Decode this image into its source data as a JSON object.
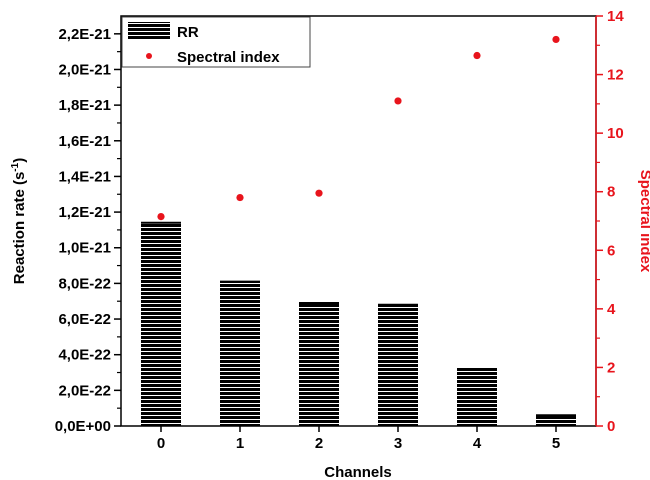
{
  "chart_data": {
    "type": "bar",
    "categories": [
      "0",
      "1",
      "2",
      "3",
      "4",
      "5"
    ],
    "xlabel": "Channels",
    "ylabel": "Reaction rate (s",
    "ylabel_superscript": "-1",
    "ylabel_close": ")",
    "y2label": "Spectral index",
    "ylim": [
      0,
      2.3e-21
    ],
    "y2lim": [
      0,
      14
    ],
    "yticks": [
      "0,0E+00",
      "2,0E-22",
      "4,0E-22",
      "6,0E-22",
      "8,0E-22",
      "1,0E-21",
      "1,2E-21",
      "1,4E-21",
      "1,6E-21",
      "1,8E-21",
      "2,0E-21",
      "2,2E-21"
    ],
    "y2ticks": [
      "0",
      "2",
      "4",
      "6",
      "8",
      "10",
      "12",
      "14"
    ],
    "series": [
      {
        "name": "RR",
        "kind": "bar",
        "axis": "left",
        "color": "#000000",
        "values": [
          1.14e-21,
          8.1e-22,
          6.9e-22,
          6.8e-22,
          3.2e-22,
          6e-23
        ]
      },
      {
        "name": "Spectral index",
        "kind": "scatter",
        "axis": "right",
        "color": "#e8141c",
        "values": [
          7.15,
          7.8,
          7.95,
          11.1,
          12.65,
          13.2
        ]
      }
    ],
    "legend_position": "top-left",
    "right_axis_color": "#e8141c",
    "grid": false
  }
}
